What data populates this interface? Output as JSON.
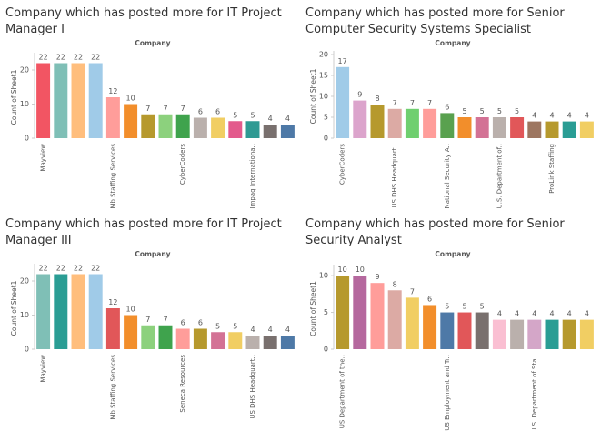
{
  "chart_data": [
    {
      "type": "bar",
      "title": "Company which has posted more for IT Project Manager I",
      "subtitle": "Company",
      "y_label": "Count of Sheet1",
      "categories": [
        "Mayview",
        null,
        null,
        null,
        "Mb Staffing Services",
        null,
        null,
        null,
        "CyberCoders",
        null,
        null,
        null,
        "Impaq Internationa..",
        null,
        null
      ],
      "values": [
        22,
        22,
        22,
        22,
        12,
        10,
        7,
        7,
        7,
        6,
        6,
        5,
        5,
        4,
        4
      ],
      "colors": [
        "#f25563",
        "#7fbfb6",
        "#ffbe7d",
        "#a0cbe8",
        "#ff9d9a",
        "#f28e2b",
        "#b6992d",
        "#8cd17d",
        "#3fa34d",
        "#bab0ac",
        "#f1ce63",
        "#e35a8c",
        "#2f9a93",
        "#79706e",
        "#4e79a7"
      ],
      "ylim": [
        0,
        24
      ],
      "yticks": [
        0,
        10,
        20
      ]
    },
    {
      "type": "bar",
      "title": "Company which has posted more for Senior Computer Security Systems Specialist",
      "subtitle": "Company",
      "y_label": "Count of Sheet1",
      "categories": [
        "CyberCoders",
        null,
        null,
        "US DHS Headquart..",
        null,
        null,
        "National Security A..",
        null,
        null,
        "U.S. Department of..",
        null,
        null,
        "ProLink Staffing",
        null,
        null
      ],
      "values": [
        17,
        9,
        8,
        7,
        7,
        7,
        6,
        5,
        5,
        5,
        5,
        4,
        4,
        4,
        4
      ],
      "colors": [
        "#a0cbe8",
        "#dca4cc",
        "#b6992d",
        "#dcaaa4",
        "#6fcf6f",
        "#ff9d9a",
        "#59a14f",
        "#f28e2b",
        "#d37295",
        "#bab0ac",
        "#e15759",
        "#9d7660",
        "#b6992d",
        "#2a9d94",
        "#f1ce63"
      ],
      "ylim": [
        0,
        20
      ],
      "yticks": [
        0,
        5,
        10,
        15,
        20
      ]
    },
    {
      "type": "bar",
      "title": "Company which has posted more for IT Project Manager III",
      "subtitle": "Company",
      "y_label": "Count of Sheet1",
      "categories": [
        "Mayview",
        null,
        null,
        null,
        "Mb Staffing Services",
        null,
        null,
        null,
        "Seneca Resources",
        null,
        null,
        null,
        "US DHS Headquart..",
        null,
        null
      ],
      "values": [
        22,
        22,
        22,
        22,
        12,
        10,
        7,
        7,
        6,
        6,
        5,
        5,
        4,
        4,
        4
      ],
      "colors": [
        "#7fbfb6",
        "#2a9d94",
        "#ffbe7d",
        "#a0cbe8",
        "#e15759",
        "#f28e2b",
        "#8cd17d",
        "#3fa34d",
        "#ff9d9a",
        "#b6992d",
        "#d37295",
        "#f1ce63",
        "#bab0ac",
        "#79706e",
        "#4e79a7"
      ],
      "ylim": [
        0,
        24
      ],
      "yticks": [
        0,
        10,
        20
      ]
    },
    {
      "type": "bar",
      "title": "Company which has posted more for Senior Security Analyst",
      "subtitle": "Company",
      "y_label": "Count of Sheet1",
      "categories": [
        "US Department of the..",
        null,
        null,
        null,
        null,
        null,
        "US Employment and Tr..",
        null,
        null,
        null,
        null,
        "U.S. Department of Sta..",
        null,
        null,
        null
      ],
      "values": [
        10,
        10,
        9,
        8,
        7,
        6,
        5,
        5,
        5,
        4,
        4,
        4,
        4,
        4,
        4
      ],
      "colors": [
        "#b6992d",
        "#b5689e",
        "#ff9d9a",
        "#dcaaa4",
        "#f1ce63",
        "#f28e2b",
        "#4e79a7",
        "#e15759",
        "#79706e",
        "#fabfd2",
        "#bab0ac",
        "#d4a6c8",
        "#2a9d94",
        "#b6992d",
        "#f1ce63"
      ],
      "ylim": [
        0,
        11
      ],
      "yticks": [
        0,
        5,
        10
      ]
    }
  ]
}
